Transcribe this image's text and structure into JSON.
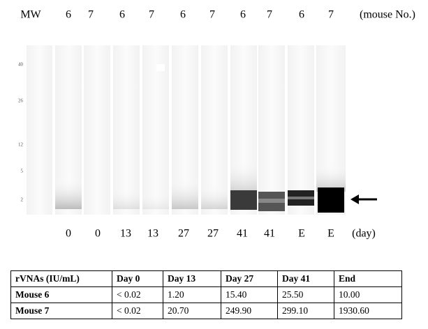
{
  "figure": {
    "lane_labels": [
      "MW",
      "6",
      "7",
      "6",
      "7",
      "6",
      "7",
      "6",
      "7",
      "6",
      "7",
      "(mouse No.)"
    ],
    "mw_markers": [
      "40",
      "26",
      "12",
      "5",
      "2"
    ],
    "day_labels": [
      "0",
      "0",
      "13",
      "13",
      "27",
      "27",
      "41",
      "41",
      "E",
      "E",
      "(day)"
    ],
    "table": {
      "header": [
        "rVNAs (IU/mL)",
        "Day 0",
        "Day 13",
        "Day 27",
        "Day 41",
        "End"
      ],
      "rows": [
        [
          "Mouse 6",
          "< 0.02",
          "1.20",
          "15.40",
          "25.50",
          "10.00"
        ],
        [
          "Mouse 7",
          "< 0.02",
          "20.70",
          "249.90",
          "299.10",
          "1930.60"
        ]
      ]
    }
  }
}
